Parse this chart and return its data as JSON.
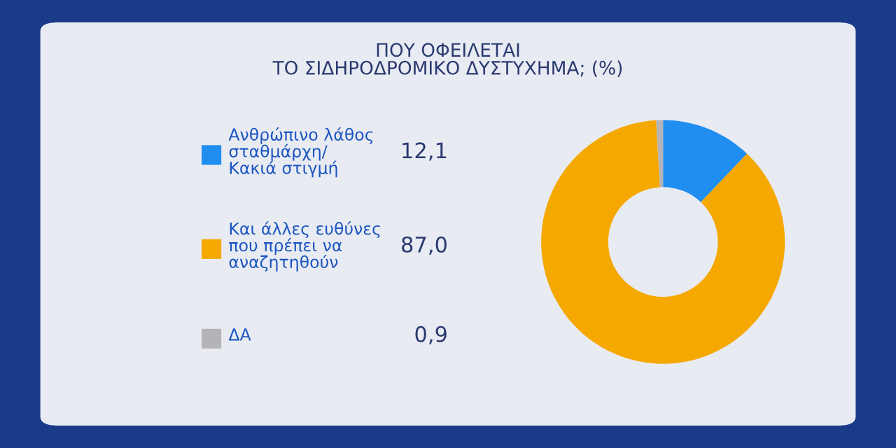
{
  "chart_data": {
    "type": "donut",
    "title": "ΠΟΥ ΟΦΕΙΛΕΤΑΙ\nΤΟ ΣΙΔΗΡΟΔΡΟΜΙΚΟ ΔΥΣΤΥΧΗΜΑ; (%)",
    "categories": [
      "Ανθρώπινο λάθος\nσταθμάρχη/\nΚακιά στιγμή",
      "Και άλλες ευθύνες\nπου πρέπει να\nαναζητηθούν",
      "ΔΑ"
    ],
    "values": [
      12.1,
      87.0,
      0.9
    ],
    "colors": [
      "#1f8ef0",
      "#f5a800",
      "#b4b4b8"
    ],
    "value_labels": [
      "12,1",
      "87,0",
      "0,9"
    ],
    "legend": "left"
  }
}
